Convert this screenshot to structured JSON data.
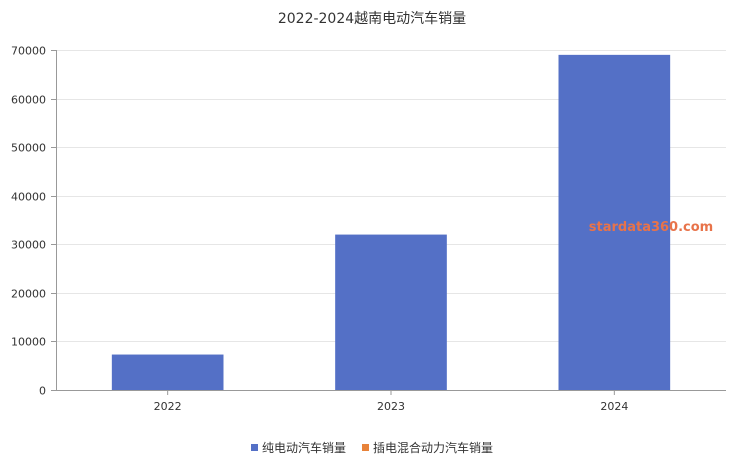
{
  "chart_data": {
    "type": "bar",
    "title": "2022-2024越南电动汽车销量",
    "xlabel": "",
    "ylabel": "",
    "categories": [
      "2022",
      "2023",
      "2024"
    ],
    "ylim": [
      0,
      70000
    ],
    "yticks": [
      0,
      10000,
      20000,
      30000,
      40000,
      50000,
      60000,
      70000
    ],
    "grid": true,
    "legend_position": "bottom",
    "series": [
      {
        "name": "纯电动汽车销量",
        "color": "#5470c6",
        "values": [
          7300,
          32000,
          69000
        ]
      },
      {
        "name": "插电混合动力汽车销量",
        "color": "#e8833a",
        "values": [
          0,
          0,
          0
        ]
      }
    ]
  },
  "watermark": "stardata360.com"
}
